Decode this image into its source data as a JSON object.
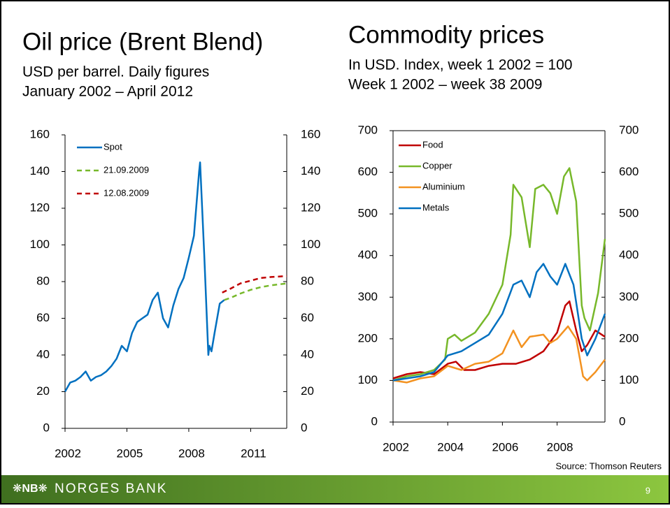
{
  "slide": {
    "brand": "NORGES BANK",
    "page_number": "9",
    "source": "Source: Thomson Reuters"
  },
  "chart_data": [
    {
      "type": "line",
      "title": "Oil price (Brent Blend)",
      "subtitle": [
        "USD per barrel. Daily figures",
        "January 2002 – April 2012"
      ],
      "xlim": [
        2002,
        2012.75
      ],
      "xticks": [
        2002,
        2005,
        2008,
        2011
      ],
      "ylim": [
        0,
        160
      ],
      "yticks": [
        0,
        20,
        40,
        60,
        80,
        100,
        120,
        140,
        160
      ],
      "y2lim": [
        0,
        160
      ],
      "y2ticks": [
        0,
        20,
        40,
        60,
        80,
        100,
        120,
        140,
        160
      ],
      "frame": false,
      "series": [
        {
          "name": "Spot",
          "color": "#0070c0",
          "dash": false,
          "x": [
            2002.0,
            2002.25,
            2002.5,
            2002.75,
            2003.0,
            2003.25,
            2003.5,
            2003.75,
            2004.0,
            2004.25,
            2004.5,
            2004.75,
            2005.0,
            2005.25,
            2005.5,
            2005.75,
            2006.0,
            2006.25,
            2006.5,
            2006.75,
            2007.0,
            2007.25,
            2007.5,
            2007.75,
            2008.0,
            2008.25,
            2008.5,
            2008.55,
            2008.75,
            2008.95,
            2009.0,
            2009.1,
            2009.25,
            2009.5,
            2009.72
          ],
          "values": [
            20,
            25,
            26,
            28,
            31,
            26,
            28,
            29,
            31,
            34,
            38,
            45,
            42,
            52,
            58,
            60,
            62,
            70,
            74,
            60,
            55,
            67,
            76,
            82,
            93,
            105,
            140,
            145,
            95,
            40,
            45,
            42,
            52,
            68,
            70
          ]
        },
        {
          "name": "21.09.2009",
          "color": "#77b82a",
          "dash": true,
          "x": [
            2009.72,
            2010.0,
            2010.5,
            2011.0,
            2011.5,
            2012.0,
            2012.75
          ],
          "values": [
            70,
            71,
            73.5,
            75.5,
            77,
            78,
            79
          ]
        },
        {
          "name": "12.08.2009",
          "color": "#c00000",
          "dash": true,
          "x": [
            2009.62,
            2010.0,
            2010.5,
            2011.0,
            2011.5,
            2012.0,
            2012.75
          ],
          "values": [
            74,
            76,
            79,
            80.5,
            82,
            82.5,
            83
          ]
        }
      ]
    },
    {
      "type": "line",
      "title": "Commodity prices",
      "subtitle": [
        "In USD. Index, week 1 2002 = 100",
        "Week 1 2002 – week 38 2009"
      ],
      "xlim": [
        2002,
        2009.75
      ],
      "xticks": [
        2002,
        2004,
        2006,
        2008
      ],
      "ylim": [
        0,
        700
      ],
      "yticks": [
        0,
        100,
        200,
        300,
        400,
        500,
        600,
        700
      ],
      "y2lim": [
        0,
        700
      ],
      "y2ticks": [
        0,
        100,
        200,
        300,
        400,
        500,
        600,
        700
      ],
      "frame": true,
      "series": [
        {
          "name": "Food",
          "color": "#c00000",
          "dash": false,
          "x": [
            2002,
            2002.5,
            2003,
            2003.5,
            2004,
            2004.3,
            2004.6,
            2005,
            2005.5,
            2006,
            2006.5,
            2007,
            2007.5,
            2008,
            2008.3,
            2008.45,
            2008.7,
            2008.9,
            2009.1,
            2009.4,
            2009.75
          ],
          "values": [
            105,
            115,
            120,
            115,
            140,
            145,
            125,
            125,
            135,
            140,
            140,
            150,
            170,
            215,
            280,
            290,
            220,
            170,
            185,
            220,
            205
          ]
        },
        {
          "name": "Copper",
          "color": "#77b82a",
          "dash": false,
          "x": [
            2002,
            2002.5,
            2003,
            2003.5,
            2003.9,
            2004.0,
            2004.25,
            2004.5,
            2005,
            2005.5,
            2006,
            2006.3,
            2006.4,
            2006.7,
            2007.0,
            2007.2,
            2007.5,
            2007.75,
            2008,
            2008.25,
            2008.45,
            2008.7,
            2008.9,
            2009,
            2009.2,
            2009.5,
            2009.75
          ],
          "values": [
            100,
            110,
            115,
            125,
            150,
            200,
            210,
            195,
            215,
            260,
            330,
            450,
            570,
            540,
            420,
            560,
            570,
            550,
            500,
            590,
            610,
            530,
            280,
            250,
            220,
            310,
            440
          ]
        },
        {
          "name": "Aluminium",
          "color": "#f39220",
          "dash": false,
          "x": [
            2002,
            2002.5,
            2003,
            2003.5,
            2004,
            2004.5,
            2005,
            2005.5,
            2006,
            2006.4,
            2006.7,
            2007,
            2007.5,
            2007.75,
            2008,
            2008.4,
            2008.7,
            2008.95,
            2009.1,
            2009.4,
            2009.75
          ],
          "values": [
            100,
            95,
            105,
            110,
            135,
            125,
            140,
            145,
            165,
            220,
            180,
            205,
            210,
            190,
            200,
            230,
            200,
            110,
            100,
            120,
            150
          ]
        },
        {
          "name": "Metals",
          "color": "#0070c0",
          "dash": false,
          "x": [
            2002,
            2002.5,
            2003,
            2003.5,
            2004,
            2004.5,
            2005,
            2005.5,
            2006,
            2006.4,
            2006.7,
            2007,
            2007.25,
            2007.5,
            2007.75,
            2008,
            2008.3,
            2008.6,
            2008.9,
            2009.1,
            2009.4,
            2009.75
          ],
          "values": [
            100,
            105,
            110,
            120,
            160,
            170,
            190,
            210,
            260,
            330,
            340,
            300,
            360,
            380,
            350,
            330,
            380,
            330,
            200,
            160,
            200,
            260
          ]
        }
      ]
    }
  ]
}
